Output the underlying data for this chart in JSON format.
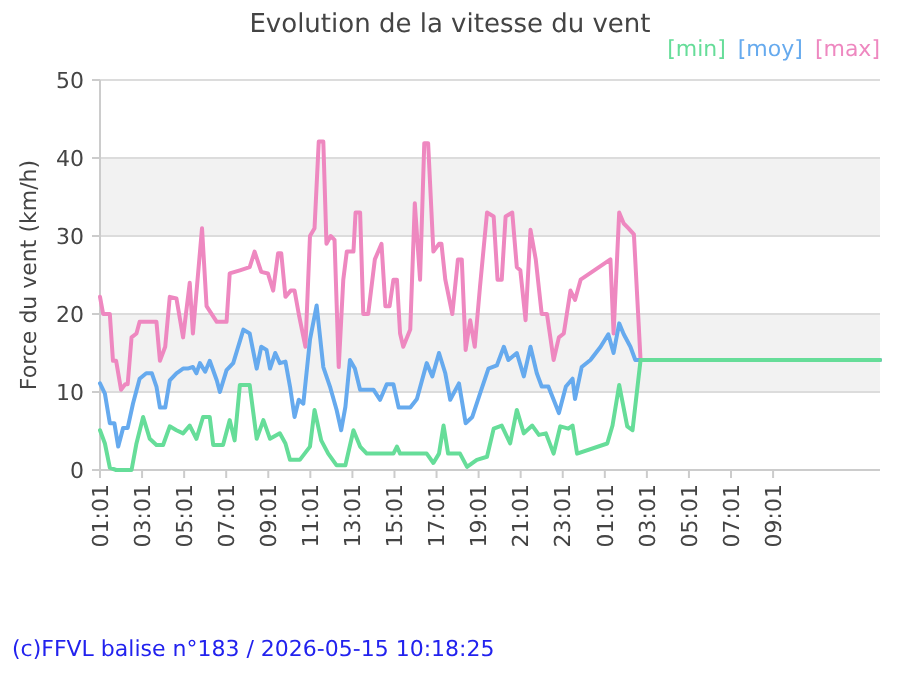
{
  "chart_data": {
    "type": "line",
    "title": "Evolution de la vitesse du vent",
    "ylabel": "Force du vent (km/h)",
    "xlim": [
      "2026-05-14T01:01",
      "2026-05-15T14:06"
    ],
    "ylim": [
      0,
      50
    ],
    "yticks": [
      0,
      10,
      20,
      30,
      40,
      50
    ],
    "xticks": [
      {
        "value": "2026-05-14T01:01",
        "label": "01:01"
      },
      {
        "value": "2026-05-14T03:01",
        "label": "03:01"
      },
      {
        "value": "2026-05-14T05:01",
        "label": "05:01"
      },
      {
        "value": "2026-05-14T07:01",
        "label": "07:01"
      },
      {
        "value": "2026-05-14T09:01",
        "label": "09:01"
      },
      {
        "value": "2026-05-14T11:01",
        "label": "11:01"
      },
      {
        "value": "2026-05-14T13:01",
        "label": "13:01"
      },
      {
        "value": "2026-05-14T15:01",
        "label": "15:01"
      },
      {
        "value": "2026-05-14T17:01",
        "label": "17:01"
      },
      {
        "value": "2026-05-14T19:01",
        "label": "19:01"
      },
      {
        "value": "2026-05-14T21:01",
        "label": "21:01"
      },
      {
        "value": "2026-05-14T23:01",
        "label": "23:01"
      },
      {
        "value": "2026-05-15T01:01",
        "label": "01:01"
      },
      {
        "value": "2026-05-15T03:01",
        "label": "03:01"
      },
      {
        "value": "2026-05-15T05:01",
        "label": "05:01"
      },
      {
        "value": "2026-05-15T07:01",
        "label": "07:01"
      },
      {
        "value": "2026-05-15T09:01",
        "label": "09:01"
      }
    ],
    "grid": "y",
    "legend": "top right",
    "bands": [
      {
        "axis": "y",
        "from": 10,
        "to": 20,
        "color": "#f2f2f2"
      },
      {
        "axis": "y",
        "from": 30,
        "to": 40,
        "color": "#f2f2f2"
      }
    ],
    "annotations": [
      "(c)FFVL balise n°183 / 2026-05-15 10:18:25"
    ],
    "series": [
      {
        "name": "[min]",
        "color": "#66dd99",
        "x": [
          "2026-05-14T01:01",
          "2026-05-14T01:15",
          "2026-05-14T01:29",
          "2026-05-14T01:47",
          "2026-05-14T02:31",
          "2026-05-14T02:45",
          "2026-05-14T03:04",
          "2026-05-14T03:23",
          "2026-05-14T03:42",
          "2026-05-14T04:01",
          "2026-05-14T04:20",
          "2026-05-14T04:39",
          "2026-05-14T04:58",
          "2026-05-14T05:17",
          "2026-05-14T05:36",
          "2026-05-14T05:55",
          "2026-05-14T06:14",
          "2026-05-14T06:24",
          "2026-05-14T06:52",
          "2026-05-14T07:11",
          "2026-05-14T07:25",
          "2026-05-14T07:40",
          "2026-05-14T08:08",
          "2026-05-14T08:28",
          "2026-05-14T08:47",
          "2026-05-14T09:06",
          "2026-05-14T09:34",
          "2026-05-14T09:50",
          "2026-05-14T10:03",
          "2026-05-14T10:31",
          "2026-05-14T11:00",
          "2026-05-14T11:13",
          "2026-05-14T11:32",
          "2026-05-14T11:52",
          "2026-05-14T12:16",
          "2026-05-14T12:41",
          "2026-05-14T13:04",
          "2026-05-14T13:23",
          "2026-05-14T13:42",
          "2026-05-14T14:01",
          "2026-05-14T14:58",
          "2026-05-14T15:08",
          "2026-05-14T15:17",
          "2026-05-14T16:33",
          "2026-05-14T16:52",
          "2026-05-14T17:08",
          "2026-05-14T17:21",
          "2026-05-14T17:34",
          "2026-05-14T18:08",
          "2026-05-14T18:28",
          "2026-05-14T18:56",
          "2026-05-14T19:25",
          "2026-05-14T19:44",
          "2026-05-14T20:07",
          "2026-05-14T20:31",
          "2026-05-14T20:50",
          "2026-05-14T21:10",
          "2026-05-14T21:34",
          "2026-05-14T21:53",
          "2026-05-14T22:13",
          "2026-05-14T22:35",
          "2026-05-14T22:54",
          "2026-05-14T23:17",
          "2026-05-14T23:29",
          "2026-05-14T23:42",
          "2026-05-15T01:08",
          "2026-05-15T01:23",
          "2026-05-15T01:42",
          "2026-05-15T02:05",
          "2026-05-15T02:20",
          "2026-05-15T02:43",
          "2026-05-15T14:06"
        ],
        "values": [
          5.1,
          3.4,
          0.3,
          0,
          0,
          3.4,
          6.8,
          4,
          3.2,
          3.2,
          5.6,
          5.1,
          4.7,
          5.7,
          4,
          6.8,
          6.8,
          3.2,
          3.2,
          6.4,
          3.8,
          10.9,
          10.9,
          4,
          6.4,
          4,
          4.7,
          3.4,
          1.3,
          1.3,
          3,
          7.7,
          3.8,
          2.1,
          0.6,
          0.6,
          5.1,
          3,
          2.1,
          2.1,
          2.1,
          3,
          2.1,
          2.1,
          0.9,
          2.1,
          5.7,
          2.1,
          2.1,
          0.4,
          1.3,
          1.7,
          5.3,
          5.7,
          3.4,
          7.7,
          4.7,
          5.7,
          4.5,
          4.7,
          2.1,
          5.6,
          5.3,
          5.7,
          2.1,
          3.4,
          5.7,
          10.9,
          5.6,
          5.1,
          14.1,
          14.1
        ]
      },
      {
        "name": "[moy]",
        "color": "#66aaee",
        "x": [
          "2026-05-14T01:01",
          "2026-05-14T01:15",
          "2026-05-14T01:29",
          "2026-05-14T01:42",
          "2026-05-14T01:53",
          "2026-05-14T02:07",
          "2026-05-14T02:20",
          "2026-05-14T02:35",
          "2026-05-14T02:54",
          "2026-05-14T03:13",
          "2026-05-14T03:29",
          "2026-05-14T03:42",
          "2026-05-14T03:52",
          "2026-05-14T04:07",
          "2026-05-14T04:20",
          "2026-05-14T04:39",
          "2026-05-14T04:58",
          "2026-05-14T05:11",
          "2026-05-14T05:26",
          "2026-05-14T05:36",
          "2026-05-14T05:46",
          "2026-05-14T06:01",
          "2026-05-14T06:14",
          "2026-05-14T06:34",
          "2026-05-14T06:43",
          "2026-05-14T07:02",
          "2026-05-14T07:21",
          "2026-05-14T07:50",
          "2026-05-14T08:08",
          "2026-05-14T08:28",
          "2026-05-14T08:41",
          "2026-05-14T08:56",
          "2026-05-14T09:06",
          "2026-05-14T09:21",
          "2026-05-14T09:34",
          "2026-05-14T09:50",
          "2026-05-14T10:03",
          "2026-05-14T10:16",
          "2026-05-14T10:28",
          "2026-05-14T10:41",
          "2026-05-14T11:00",
          "2026-05-14T11:19",
          "2026-05-14T11:38",
          "2026-05-14T11:57",
          "2026-05-14T12:16",
          "2026-05-14T12:29",
          "2026-05-14T12:41",
          "2026-05-14T12:54",
          "2026-05-14T13:08",
          "2026-05-14T13:23",
          "2026-05-14T14:01",
          "2026-05-14T14:20",
          "2026-05-14T14:39",
          "2026-05-14T14:58",
          "2026-05-14T15:13",
          "2026-05-14T15:46",
          "2026-05-14T16:05",
          "2026-05-14T16:33",
          "2026-05-14T16:49",
          "2026-05-14T17:08",
          "2026-05-14T17:26",
          "2026-05-14T17:40",
          "2026-05-14T18:05",
          "2026-05-14T18:24",
          "2026-05-14T18:43",
          "2026-05-14T19:05",
          "2026-05-14T19:29",
          "2026-05-14T19:53",
          "2026-05-14T20:13",
          "2026-05-14T20:26",
          "2026-05-14T20:50",
          "2026-05-14T21:10",
          "2026-05-14T21:29",
          "2026-05-14T21:47",
          "2026-05-14T22:01",
          "2026-05-14T22:20",
          "2026-05-14T22:50",
          "2026-05-14T23:10",
          "2026-05-14T23:29",
          "2026-05-14T23:36",
          "2026-05-14T23:55",
          "2026-05-15T00:20",
          "2026-05-15T00:49",
          "2026-05-15T01:11",
          "2026-05-15T01:26",
          "2026-05-15T01:42",
          "2026-05-15T01:55",
          "2026-05-15T02:14",
          "2026-05-15T02:28",
          "2026-05-15T02:43",
          "2026-05-15T14:06"
        ],
        "values": [
          11.1,
          9.8,
          6,
          6,
          3,
          5.4,
          5.4,
          8.5,
          11.7,
          12.4,
          12.4,
          10.7,
          8,
          8,
          11.5,
          12.4,
          13,
          13,
          13.2,
          12.4,
          13.7,
          12.6,
          14,
          11.5,
          10,
          12.8,
          13.7,
          18,
          17.5,
          13,
          15.8,
          15.4,
          13,
          15,
          13.7,
          13.9,
          10.7,
          6.8,
          9,
          8.5,
          16.7,
          21.1,
          13.2,
          10.7,
          7.7,
          5.1,
          8.1,
          14.1,
          13,
          10.3,
          10.3,
          9,
          11,
          11,
          8,
          8,
          9.1,
          13.7,
          12,
          15,
          12.4,
          9,
          11.1,
          6,
          6.8,
          9.8,
          13,
          13.4,
          15.8,
          14.1,
          15,
          12,
          15.8,
          12.4,
          10.7,
          10.7,
          7.3,
          10.7,
          11.7,
          9.1,
          13.2,
          14.1,
          15.8,
          17.4,
          15,
          18.8,
          17.4,
          15.8,
          14.1,
          14.1,
          14.1
        ]
      },
      {
        "name": "[max]",
        "color": "#ee88c0",
        "x": [
          "2026-05-14T01:01",
          "2026-05-14T01:10",
          "2026-05-14T01:29",
          "2026-05-14T01:38",
          "2026-05-14T01:47",
          "2026-05-14T02:01",
          "2026-05-14T02:13",
          "2026-05-14T02:20",
          "2026-05-14T02:31",
          "2026-05-14T02:45",
          "2026-05-14T02:54",
          "2026-05-14T03:42",
          "2026-05-14T03:52",
          "2026-05-14T04:07",
          "2026-05-14T04:20",
          "2026-05-14T04:39",
          "2026-05-14T04:58",
          "2026-05-14T05:17",
          "2026-05-14T05:26",
          "2026-05-14T05:52",
          "2026-05-14T06:05",
          "2026-05-14T06:34",
          "2026-05-14T07:02",
          "2026-05-14T07:11",
          "2026-05-14T07:40",
          "2026-05-14T08:08",
          "2026-05-14T08:22",
          "2026-05-14T08:41",
          "2026-05-14T09:00",
          "2026-05-14T09:15",
          "2026-05-14T09:29",
          "2026-05-14T09:38",
          "2026-05-14T09:50",
          "2026-05-14T10:05",
          "2026-05-14T10:16",
          "2026-05-14T10:28",
          "2026-05-14T10:47",
          "2026-05-14T11:00",
          "2026-05-14T11:13",
          "2026-05-14T11:25",
          "2026-05-14T11:38",
          "2026-05-14T11:47",
          "2026-05-14T11:59",
          "2026-05-14T12:10",
          "2026-05-14T12:22",
          "2026-05-14T12:35",
          "2026-05-14T12:45",
          "2026-05-14T13:04",
          "2026-05-14T13:10",
          "2026-05-14T13:23",
          "2026-05-14T13:32",
          "2026-05-14T13:46",
          "2026-05-14T14:05",
          "2026-05-14T14:24",
          "2026-05-14T14:35",
          "2026-05-14T14:47",
          "2026-05-14T14:58",
          "2026-05-14T15:08",
          "2026-05-14T15:17",
          "2026-05-14T15:26",
          "2026-05-14T15:46",
          "2026-05-14T15:59",
          "2026-05-14T16:14",
          "2026-05-14T16:26",
          "2026-05-14T16:37",
          "2026-05-14T16:52",
          "2026-05-14T17:08",
          "2026-05-14T17:15",
          "2026-05-14T17:26",
          "2026-05-14T17:46",
          "2026-05-14T18:02",
          "2026-05-14T18:13",
          "2026-05-14T18:24",
          "2026-05-14T18:37",
          "2026-05-14T18:50",
          "2026-05-14T19:05",
          "2026-05-14T19:25",
          "2026-05-14T19:44",
          "2026-05-14T19:55",
          "2026-05-14T20:07",
          "2026-05-14T20:18",
          "2026-05-14T20:37",
          "2026-05-14T20:50",
          "2026-05-14T21:00",
          "2026-05-14T21:15",
          "2026-05-14T21:29",
          "2026-05-14T21:44",
          "2026-05-14T22:01",
          "2026-05-14T22:16",
          "2026-05-14T22:35",
          "2026-05-14T22:50",
          "2026-05-14T23:04",
          "2026-05-14T23:23",
          "2026-05-14T23:36",
          "2026-05-14T23:52",
          "2026-05-15T01:17",
          "2026-05-15T01:26",
          "2026-05-15T01:42",
          "2026-05-15T01:55",
          "2026-05-15T02:08",
          "2026-05-15T02:24",
          "2026-05-15T02:43",
          "2026-05-15T14:06"
        ],
        "values": [
          22.2,
          20,
          20,
          14,
          14,
          10.3,
          11,
          11,
          17,
          17.5,
          19,
          19,
          14,
          15.8,
          22.2,
          22,
          17,
          24,
          17.5,
          31,
          21,
          19,
          19,
          25.2,
          25.6,
          26,
          28,
          25.4,
          25.2,
          23,
          27.8,
          27.8,
          22.2,
          23,
          23,
          20,
          15.8,
          30,
          31,
          42.1,
          42.1,
          29,
          30,
          29.5,
          13.2,
          24.4,
          28,
          28,
          33,
          33,
          20,
          20,
          27,
          29,
          21,
          21,
          24.4,
          24.4,
          17.5,
          15.8,
          18,
          34.2,
          24.4,
          41.9,
          41.9,
          28,
          29,
          29,
          24.4,
          20,
          27,
          27,
          15.4,
          19.2,
          15.8,
          23.5,
          33,
          32.5,
          24.4,
          24.4,
          32.5,
          33,
          26,
          25.6,
          19.2,
          30.8,
          27,
          20,
          20,
          14.1,
          17,
          17.5,
          23,
          21.8,
          24.4,
          27,
          17.5,
          33,
          31.6,
          31,
          30.2,
          14.1,
          14.1
        ]
      }
    ]
  }
}
